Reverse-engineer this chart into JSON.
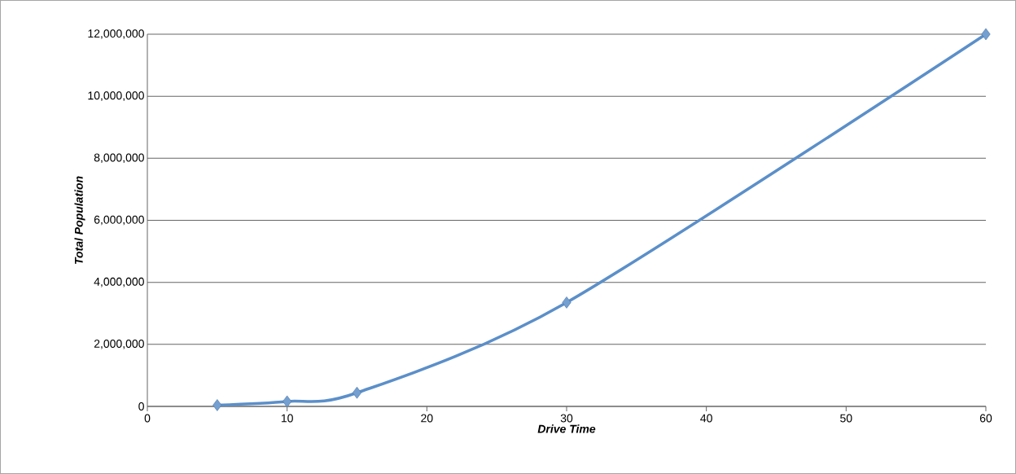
{
  "chart_data": {
    "type": "line",
    "xlabel": "Drive Time",
    "ylabel": "Total Population",
    "x": [
      5,
      10,
      15,
      30,
      60
    ],
    "series": [
      {
        "color": "#5b8fc9",
        "values": [
          40000,
          160000,
          440000,
          3350000,
          12000000
        ]
      }
    ],
    "xlim": [
      0,
      60
    ],
    "xticks": [
      0,
      10,
      20,
      30,
      40,
      50,
      60
    ],
    "ylim": [
      0,
      12000000
    ],
    "yticks": [
      {
        "value": 0,
        "label": "0"
      },
      {
        "value": 2000000,
        "label": "2,000,000"
      },
      {
        "value": 4000000,
        "label": "4,000,000"
      },
      {
        "value": 6000000,
        "label": "6,000,000"
      },
      {
        "value": 8000000,
        "label": "8,000,000"
      },
      {
        "value": 10000000,
        "label": "10,000,000"
      },
      {
        "value": 12000000,
        "label": "12,000,000"
      }
    ],
    "grid": "y",
    "marker": "diamond",
    "line_style": "solid"
  }
}
